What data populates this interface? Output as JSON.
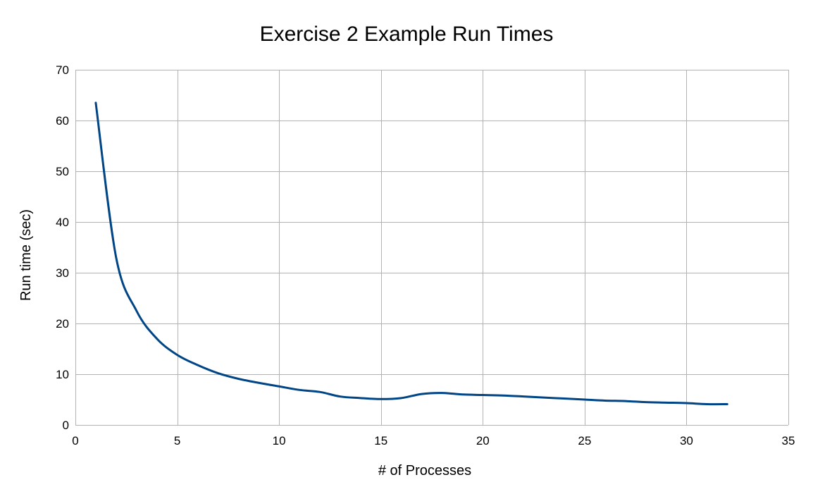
{
  "chart_data": {
    "type": "line",
    "title": "Exercise 2 Example Run Times",
    "xlabel": "# of Processes",
    "ylabel": "Run time (sec)",
    "xlim": [
      0,
      35
    ],
    "ylim": [
      0,
      70
    ],
    "xticks": [
      0,
      5,
      10,
      15,
      20,
      25,
      30,
      35
    ],
    "yticks": [
      0,
      10,
      20,
      30,
      40,
      50,
      60,
      70
    ],
    "grid": true,
    "legend": "none",
    "series": [
      {
        "color": "#004586",
        "x": [
          1,
          2,
          3,
          4,
          5,
          6,
          7,
          8,
          9,
          10,
          11,
          12,
          13,
          14,
          15,
          16,
          17,
          18,
          19,
          20,
          21,
          22,
          23,
          24,
          25,
          26,
          27,
          28,
          29,
          30,
          31,
          32
        ],
        "y": [
          63.5,
          33.0,
          22.5,
          17.0,
          13.8,
          11.8,
          10.2,
          9.1,
          8.3,
          7.6,
          6.9,
          6.5,
          5.6,
          5.3,
          5.1,
          5.3,
          6.1,
          6.3,
          6.0,
          5.9,
          5.8,
          5.6,
          5.4,
          5.2,
          5.0,
          4.8,
          4.7,
          4.5,
          4.4,
          4.3,
          4.1,
          4.1
        ]
      }
    ]
  }
}
